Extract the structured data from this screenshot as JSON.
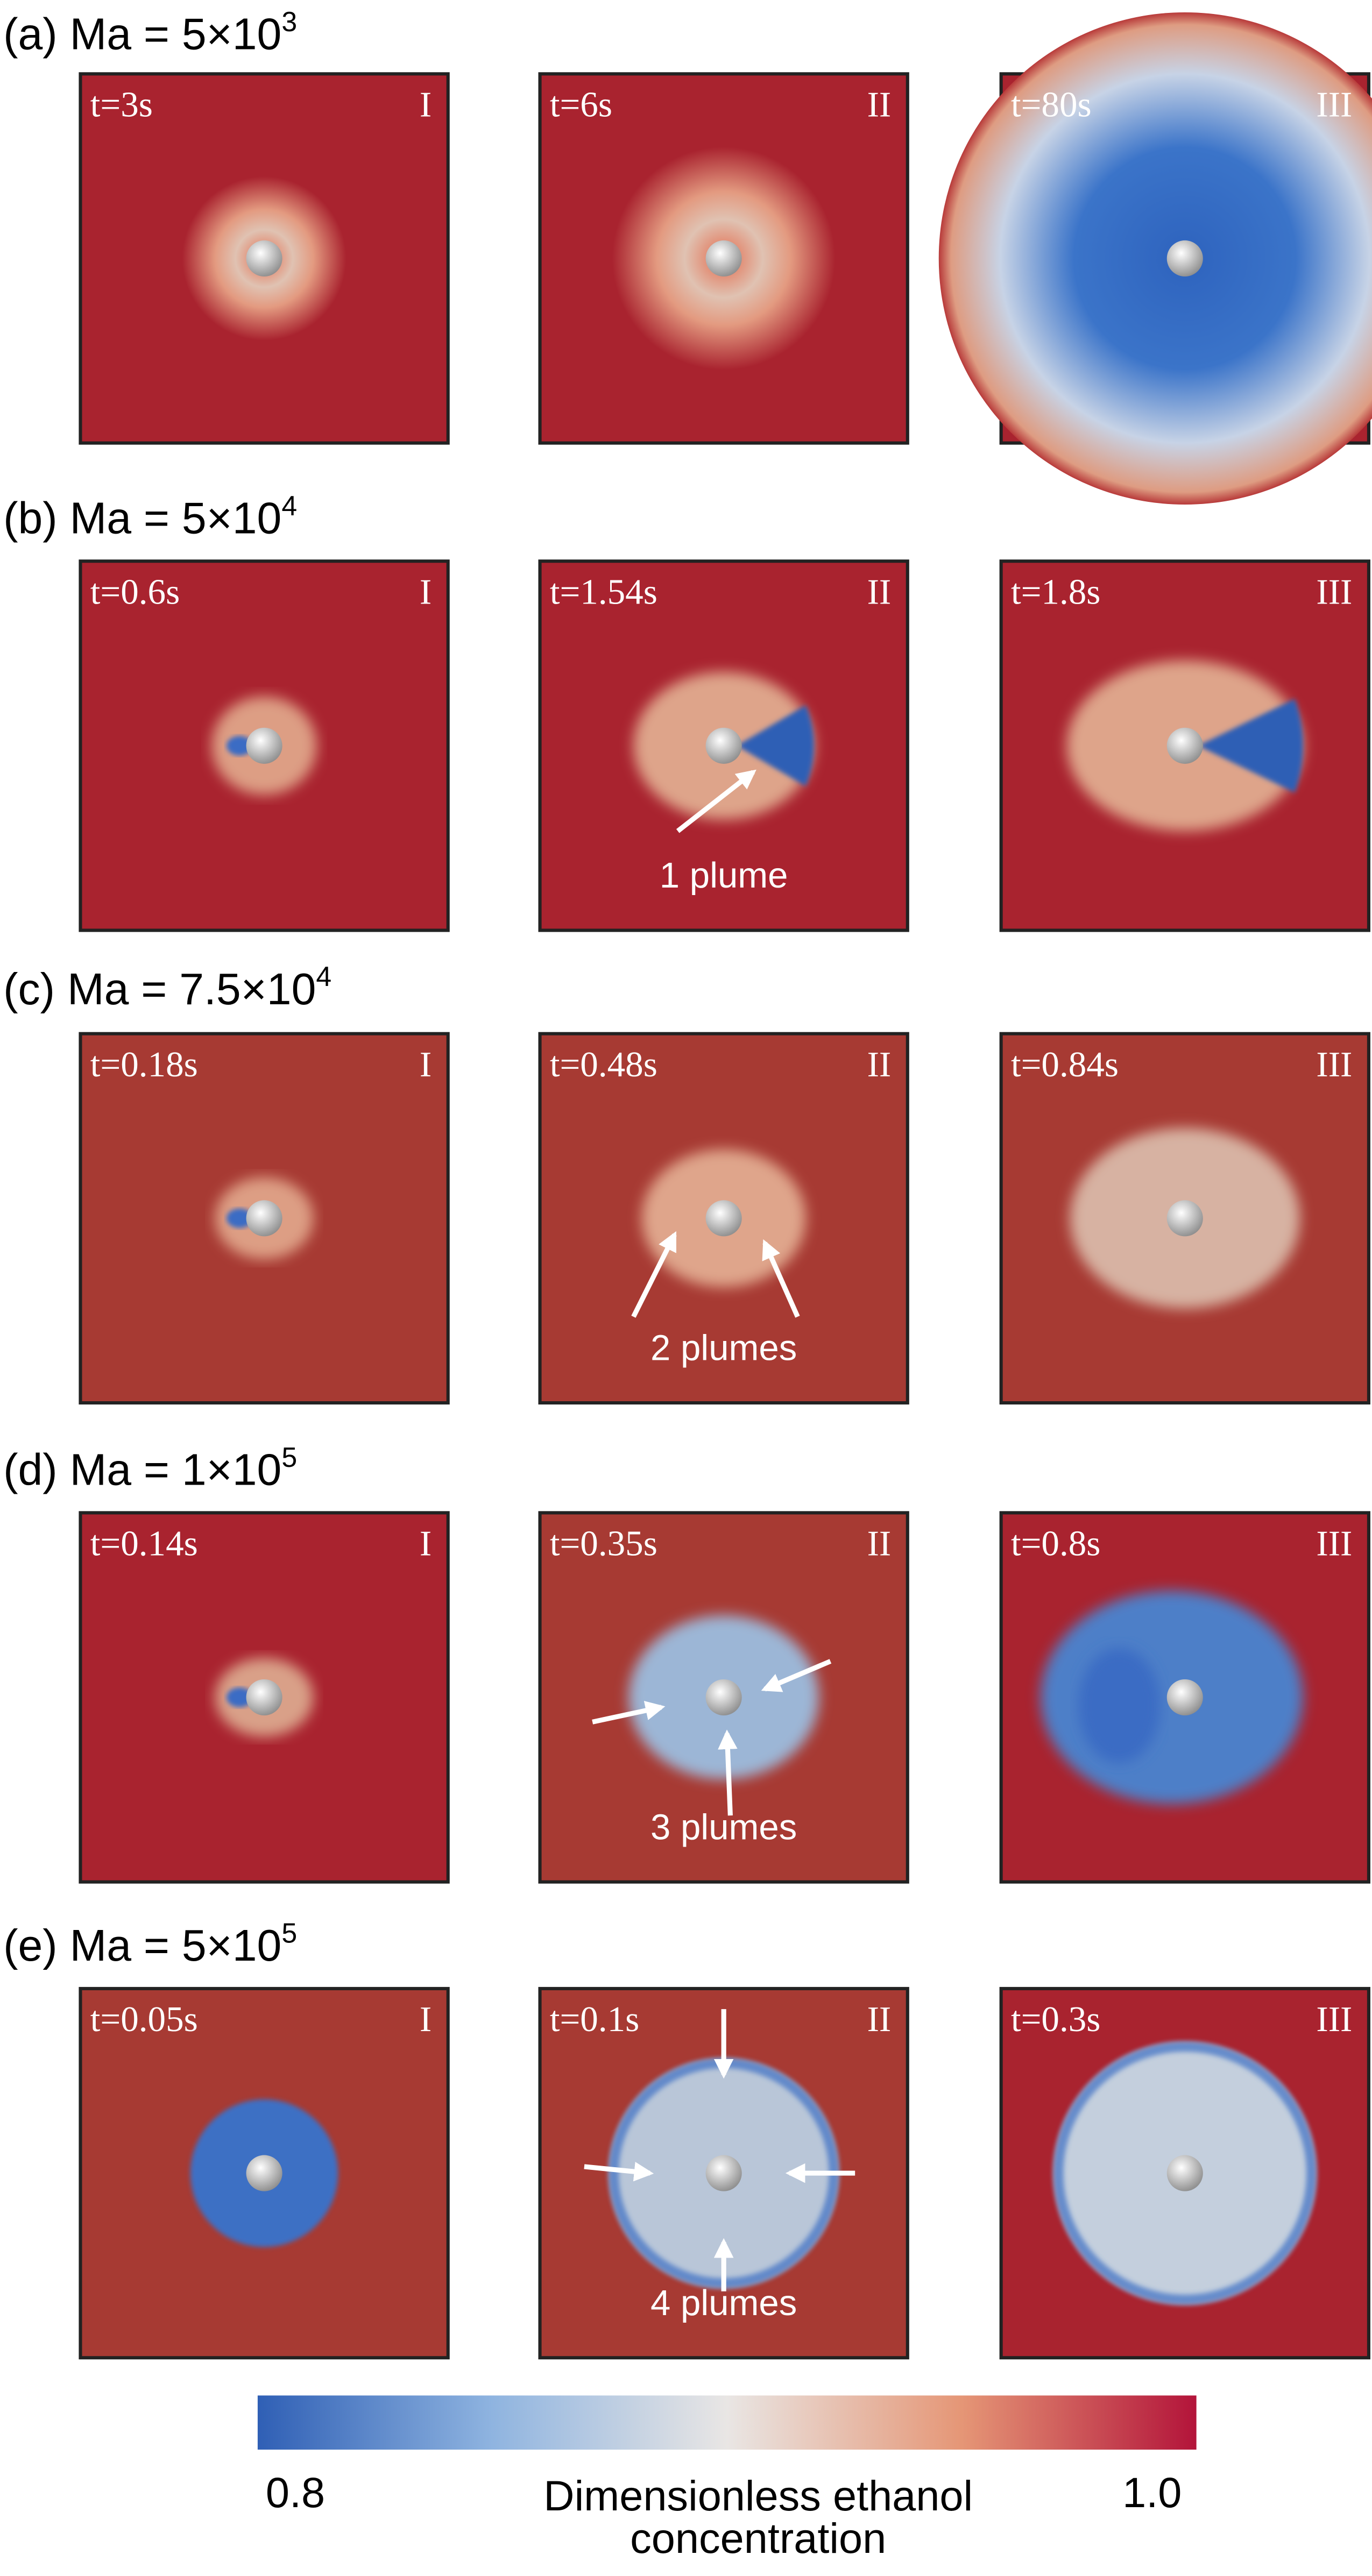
{
  "rows": [
    {
      "label": "(a) Ma = 5×10",
      "exponent": "3",
      "panels": [
        {
          "time": "t=3s",
          "numeral": "I"
        },
        {
          "time": "t=6s",
          "numeral": "II"
        },
        {
          "time": "t=80s",
          "numeral": "III"
        }
      ]
    },
    {
      "label": "(b) Ma = 5×10",
      "exponent": "4",
      "panels": [
        {
          "time": "t=0.6s",
          "numeral": "I"
        },
        {
          "time": "t=1.54s",
          "numeral": "II",
          "annotation": "1 plume"
        },
        {
          "time": "t=1.8s",
          "numeral": "III"
        }
      ]
    },
    {
      "label": "(c) Ma = 7.5×10",
      "exponent": "4",
      "panels": [
        {
          "time": "t=0.18s",
          "numeral": "I"
        },
        {
          "time": "t=0.48s",
          "numeral": "II",
          "annotation": "2 plumes"
        },
        {
          "time": "t=0.84s",
          "numeral": "III"
        }
      ]
    },
    {
      "label": "(d) Ma = 1×10",
      "exponent": "5",
      "panels": [
        {
          "time": "t=0.14s",
          "numeral": "I"
        },
        {
          "time": "t=0.35s",
          "numeral": "II",
          "annotation": "3 plumes"
        },
        {
          "time": "t=0.8s",
          "numeral": "III"
        }
      ]
    },
    {
      "label": "(e) Ma = 5×10",
      "exponent": "5",
      "panels": [
        {
          "time": "t=0.05s",
          "numeral": "I"
        },
        {
          "time": "t=0.1s",
          "numeral": "II",
          "annotation": "4 plumes"
        },
        {
          "time": "t=0.3s",
          "numeral": "III"
        }
      ]
    }
  ],
  "colorbar": {
    "min_label": "0.8",
    "max_label": "1.0",
    "title_line1": "Dimensionless ethanol",
    "title_line2": "concentration"
  }
}
